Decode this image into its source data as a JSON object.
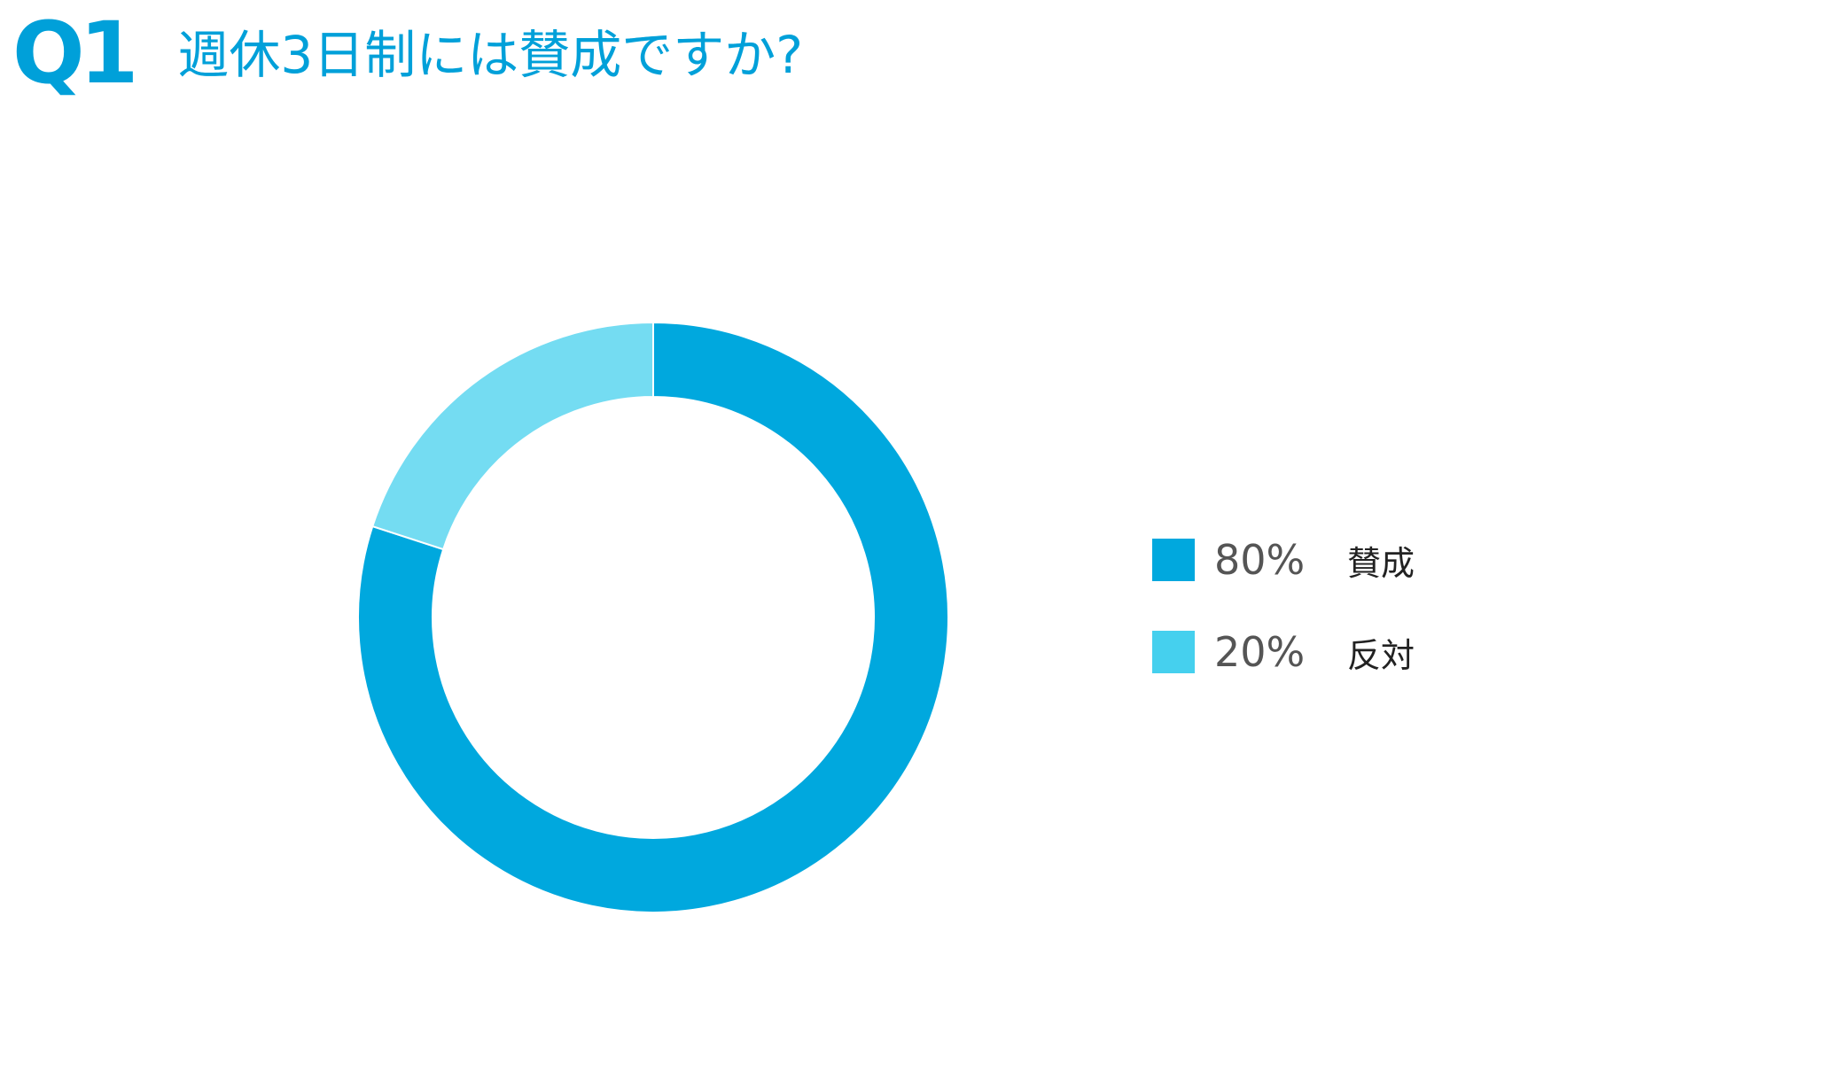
{
  "header": {
    "question_number": "Q1",
    "question_text": "週休3日制には賛成ですか?"
  },
  "colors": {
    "accent": "#00a0d9",
    "series_primary": "#00a8de",
    "series_secondary": "#74dcf2",
    "legend_secondary_swatch": "#45d0ee"
  },
  "chart_data": {
    "type": "pie",
    "variant": "donut",
    "start_angle": "12 o'clock",
    "direction": "clockwise",
    "slices": [
      {
        "label": "賛成",
        "value": 80,
        "display_value": "80%",
        "color": "#00a8de"
      },
      {
        "label": "反対",
        "value": 20,
        "display_value": "20%",
        "color": "#74dcf2"
      }
    ],
    "legend_position": "right"
  },
  "legend": {
    "items": [
      {
        "value": "80%",
        "label": "賛成",
        "color": "#00a8de"
      },
      {
        "value": "20%",
        "label": "反対",
        "color": "#45d0ee"
      }
    ]
  }
}
